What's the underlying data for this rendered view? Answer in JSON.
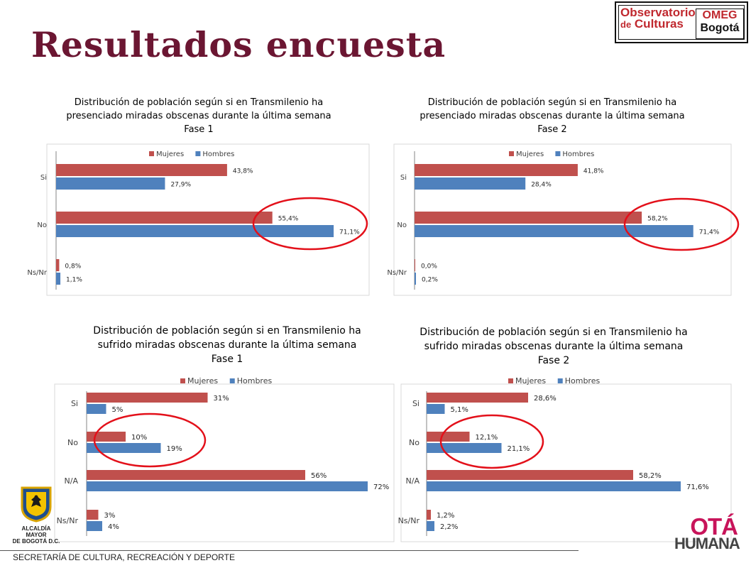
{
  "page": {
    "title": "Resultados encuesta",
    "footer": "SECRETARÍA DE CULTURA, RECREACIÓN Y DEPORTE"
  },
  "logos": {
    "observatorio_line1": "Observatorio",
    "observatorio_de": "de",
    "observatorio_line2": "Culturas",
    "omeg_line1": "OMEG",
    "omeg_line2": "Bogotá",
    "alcaldia_line1": "ALCALDÍA MAYOR",
    "alcaldia_line2": "DE BOGOTÁ D.C.",
    "bogota_line1": "OTÁ",
    "bogota_line2": "HUMANA"
  },
  "colors": {
    "mujeres": "#c0504d",
    "hombres": "#4f81bd",
    "highlight": "#e3101a",
    "title": "#6b1632"
  },
  "chart_data": [
    {
      "type": "bar",
      "orientation": "horizontal",
      "title": [
        "Distribución de población según si en Transmilenio ha",
        "presenciado miradas obscenas durante la última semana",
        "Fase 1"
      ],
      "categories": [
        "Si",
        "No",
        "Ns/Nr"
      ],
      "xlim": [
        0,
        80
      ],
      "legend": "top",
      "series": [
        {
          "name": "Mujeres",
          "values": [
            43.8,
            55.4,
            0.8
          ],
          "labels": [
            "43,8%",
            "55,4%",
            "0,8%"
          ]
        },
        {
          "name": "Hombres",
          "values": [
            27.9,
            71.1,
            1.1
          ],
          "labels": [
            "27,9%",
            "71,1%",
            "1,1%"
          ]
        }
      ],
      "highlight": "No"
    },
    {
      "type": "bar",
      "orientation": "horizontal",
      "title": [
        "Distribución de población según si en Transmilenio ha",
        "presenciado miradas obscenas durante la última semana",
        "Fase 2"
      ],
      "categories": [
        "Si",
        "No",
        "Ns/Nr"
      ],
      "xlim": [
        0,
        80
      ],
      "legend": "top",
      "series": [
        {
          "name": "Mujeres",
          "values": [
            41.8,
            58.2,
            0.0
          ],
          "labels": [
            "41,8%",
            "58,2%",
            "0,0%"
          ]
        },
        {
          "name": "Hombres",
          "values": [
            28.4,
            71.4,
            0.2
          ],
          "labels": [
            "28,4%",
            "71,4%",
            "0,2%"
          ]
        }
      ],
      "highlight": "No"
    },
    {
      "type": "bar",
      "orientation": "horizontal",
      "title": [
        "Distribución de población según si en Transmilenio ha",
        "sufrido miradas obscenas durante la última semana",
        "Fase 1"
      ],
      "categories": [
        "Si",
        "No",
        "N/A",
        "Ns/Nr"
      ],
      "xlim": [
        0,
        80
      ],
      "legend": "top",
      "series": [
        {
          "name": "Mujeres",
          "values": [
            31,
            10,
            56,
            3
          ],
          "labels": [
            "31%",
            "10%",
            "56%",
            "3%"
          ]
        },
        {
          "name": "Hombres",
          "values": [
            5,
            19,
            72,
            4
          ],
          "labels": [
            "5%",
            "19%",
            "72%",
            "4%"
          ]
        }
      ],
      "highlight": "No"
    },
    {
      "type": "bar",
      "orientation": "horizontal",
      "title": [
        "Distribución de población según si en Transmilenio ha",
        "sufrido miradas obscenas durante la última semana",
        "Fase 2"
      ],
      "categories": [
        "Si",
        "No",
        "N/A",
        "Ns/Nr"
      ],
      "xlim": [
        0,
        80
      ],
      "legend": "top",
      "series": [
        {
          "name": "Mujeres",
          "values": [
            28.6,
            12.1,
            58.2,
            1.2
          ],
          "labels": [
            "28,6%",
            "12,1%",
            "58,2%",
            "1,2%"
          ]
        },
        {
          "name": "Hombres",
          "values": [
            5.1,
            21.1,
            71.6,
            2.2
          ],
          "labels": [
            "5,1%",
            "21,1%",
            "71,6%",
            "2,2%"
          ]
        }
      ],
      "highlight": "No"
    }
  ]
}
